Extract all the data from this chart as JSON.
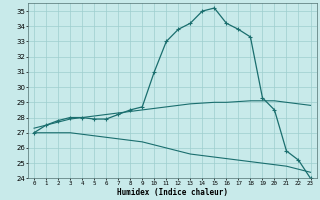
{
  "xlabel": "Humidex (Indice chaleur)",
  "bg_color": "#c8eaea",
  "grid_color": "#9ecece",
  "line_color": "#1a6e6e",
  "xlim": [
    -0.5,
    23.5
  ],
  "ylim": [
    24,
    35.5
  ],
  "yticks": [
    24,
    25,
    26,
    27,
    28,
    29,
    30,
    31,
    32,
    33,
    34,
    35
  ],
  "xticks": [
    0,
    1,
    2,
    3,
    4,
    5,
    6,
    7,
    8,
    9,
    10,
    11,
    12,
    13,
    14,
    15,
    16,
    17,
    18,
    19,
    20,
    21,
    22,
    23
  ],
  "series": {
    "main": {
      "x": [
        0,
        1,
        2,
        3,
        4,
        5,
        6,
        7,
        8,
        9,
        10,
        11,
        12,
        13,
        14,
        15,
        16,
        17,
        18,
        19,
        20,
        21,
        22,
        23
      ],
      "y": [
        27.0,
        27.5,
        27.8,
        28.0,
        28.0,
        27.9,
        27.9,
        28.2,
        28.5,
        28.7,
        31.0,
        33.0,
        33.8,
        34.2,
        35.0,
        35.2,
        34.2,
        33.8,
        33.3,
        29.3,
        28.5,
        25.8,
        25.2,
        24.0
      ]
    },
    "upper": {
      "x": [
        0,
        1,
        2,
        3,
        4,
        5,
        6,
        7,
        8,
        9,
        10,
        11,
        12,
        13,
        14,
        15,
        16,
        17,
        18,
        19,
        20,
        21,
        22,
        23
      ],
      "y": [
        27.3,
        27.5,
        27.7,
        27.9,
        28.0,
        28.1,
        28.2,
        28.3,
        28.4,
        28.5,
        28.6,
        28.7,
        28.8,
        28.9,
        28.95,
        29.0,
        29.0,
        29.05,
        29.1,
        29.1,
        29.1,
        29.0,
        28.9,
        28.8
      ]
    },
    "lower": {
      "x": [
        0,
        1,
        2,
        3,
        4,
        5,
        6,
        7,
        8,
        9,
        10,
        11,
        12,
        13,
        14,
        15,
        16,
        17,
        18,
        19,
        20,
        21,
        22,
        23
      ],
      "y": [
        27.0,
        27.0,
        27.0,
        27.0,
        26.9,
        26.8,
        26.7,
        26.6,
        26.5,
        26.4,
        26.2,
        26.0,
        25.8,
        25.6,
        25.5,
        25.4,
        25.3,
        25.2,
        25.1,
        25.0,
        24.9,
        24.8,
        24.6,
        24.4
      ]
    }
  },
  "xlabel_fontsize": 5.5,
  "xtick_fontsize": 4.2,
  "ytick_fontsize": 5.0
}
